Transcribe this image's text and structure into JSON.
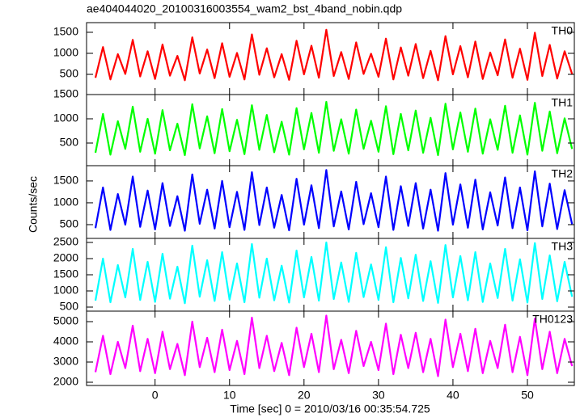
{
  "title": "ae404044020_20100316003554_wam2_bst_4band_nobin.qdp",
  "xlabel": "Time [sec] 0 = 2010/03/16 00:35:54.725",
  "ylabel": "Counts/sec",
  "chart_data": {
    "type": "line",
    "xlim": [
      -9.2,
      56.3
    ],
    "xticks": [
      0,
      10,
      20,
      30,
      40,
      50
    ],
    "x": [
      -8,
      -7,
      -6,
      -5,
      -4,
      -3,
      -2,
      -1,
      0,
      1,
      2,
      3,
      4,
      5,
      6,
      7,
      8,
      9,
      10,
      11,
      12,
      13,
      14,
      15,
      16,
      17,
      18,
      19,
      20,
      21,
      22,
      23,
      24,
      25,
      26,
      27,
      28,
      29,
      30,
      31,
      32,
      33,
      34,
      35,
      36,
      37,
      38,
      39,
      40,
      41,
      42,
      43,
      44,
      45,
      46,
      47,
      48,
      49,
      50,
      51,
      52,
      53,
      54,
      55,
      56
    ],
    "series": [
      {
        "name": "TH0",
        "color": "#ff0000",
        "ylim": [
          20,
          1730
        ],
        "yticks": [
          500,
          1000,
          1500
        ],
        "values": [
          420,
          1150,
          380,
          980,
          510,
          1320,
          450,
          1050,
          390,
          1210,
          470,
          940,
          360,
          1380,
          520,
          1090,
          410,
          1240,
          440,
          1010,
          380,
          1450,
          490,
          1120,
          430,
          980,
          370,
          1300,
          500,
          1180,
          420,
          1560,
          460,
          1030,
          390,
          1260,
          510,
          990,
          440,
          1350,
          380,
          1140,
          470,
          1220,
          410,
          1060,
          360,
          1410,
          500,
          1170,
          430,
          1280,
          390,
          1020,
          480,
          1330,
          420,
          1110,
          370,
          1490,
          460,
          1200,
          400,
          1050,
          510
        ]
      },
      {
        "name": "TH1",
        "color": "#00ff00",
        "ylim": [
          33,
          1500
        ],
        "yticks": [
          500,
          1000,
          1500
        ],
        "values": [
          300,
          1100,
          260,
          950,
          380,
          1250,
          320,
          1000,
          280,
          1180,
          350,
          900,
          250,
          1300,
          390,
          1050,
          290,
          1200,
          330,
          980,
          270,
          1280,
          360,
          1080,
          310,
          940,
          260,
          1220,
          370,
          1120,
          300,
          1350,
          340,
          990,
          280,
          1190,
          380,
          960,
          320,
          1260,
          270,
          1100,
          350,
          1170,
          300,
          1020,
          250,
          1310,
          370,
          1130,
          320,
          1210,
          280,
          990,
          360,
          1270,
          300,
          1070,
          260,
          1330,
          340,
          1150,
          290,
          1010,
          380
        ]
      },
      {
        "name": "TH2",
        "color": "#0000ff",
        "ylim": [
          185,
          1850
        ],
        "yticks": [
          500,
          1000,
          1500
        ],
        "values": [
          420,
          1350,
          380,
          1200,
          500,
          1600,
          450,
          1280,
          390,
          1450,
          470,
          1150,
          360,
          1650,
          520,
          1300,
          410,
          1500,
          440,
          1250,
          380,
          1700,
          490,
          1350,
          430,
          1180,
          370,
          1550,
          500,
          1400,
          420,
          1750,
          460,
          1260,
          390,
          1480,
          510,
          1220,
          440,
          1600,
          380,
          1380,
          470,
          1450,
          410,
          1300,
          360,
          1680,
          500,
          1420,
          430,
          1530,
          390,
          1240,
          480,
          1580,
          420,
          1350,
          370,
          1720,
          460,
          1440,
          400,
          1290,
          510
        ]
      },
      {
        "name": "TH3",
        "color": "#00ffff",
        "ylim": [
          375,
          2625
        ],
        "yticks": [
          500,
          1000,
          1500,
          2000,
          2500
        ],
        "values": [
          700,
          2000,
          650,
          1800,
          800,
          2300,
          720,
          1900,
          660,
          2150,
          760,
          1750,
          620,
          2400,
          820,
          1950,
          690,
          2200,
          730,
          1850,
          650,
          2450,
          790,
          2000,
          710,
          1780,
          640,
          2250,
          800,
          2050,
          700,
          2500,
          750,
          1880,
          660,
          2180,
          810,
          1820,
          720,
          2350,
          650,
          2020,
          770,
          2120,
          690,
          1920,
          630,
          2420,
          800,
          2080,
          710,
          2200,
          660,
          1850,
          780,
          2300,
          700,
          1980,
          640,
          2480,
          750,
          2100,
          680,
          1900,
          820
        ]
      },
      {
        "name": "TH0123",
        "color": "#ff00ff",
        "ylim": [
          1840,
          5520
        ],
        "yticks": [
          2000,
          3000,
          4000,
          5000
        ],
        "values": [
          2500,
          4300,
          2400,
          4000,
          2700,
          4800,
          2550,
          4150,
          2450,
          4500,
          2650,
          3900,
          2350,
          5000,
          2750,
          4200,
          2500,
          4600,
          2600,
          4050,
          2400,
          5200,
          2700,
          4300,
          2550,
          3950,
          2350,
          4700,
          2750,
          4400,
          2500,
          5300,
          2650,
          4100,
          2450,
          4550,
          2800,
          4000,
          2600,
          4900,
          2400,
          4350,
          2700,
          4450,
          2500,
          4150,
          2300,
          5100,
          2750,
          4400,
          2550,
          4650,
          2450,
          4050,
          2700,
          4850,
          2500,
          4250,
          2350,
          5150,
          2650,
          4500,
          2450,
          4150,
          2800
        ]
      }
    ]
  }
}
